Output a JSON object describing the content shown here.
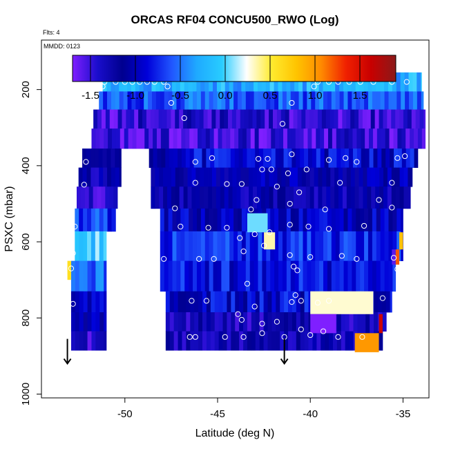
{
  "chart_data": {
    "type": "heatmap",
    "title": "ORCAS RF04 CONCU500_RWO (Log)",
    "notes": {
      "flights": "Flts: 4",
      "date": "MMDD: 0123"
    },
    "xlabel": "Latitude (deg N)",
    "ylabel": "PSXC (mbar)",
    "xlim": [
      -54.5,
      -33.6
    ],
    "ylim": [
      1010,
      70
    ],
    "y_reversed": true,
    "x_ticks": [
      -50,
      -45,
      -40,
      -35
    ],
    "x_tick_labels": [
      "-50",
      "-45",
      "-40",
      "-35"
    ],
    "y_ticks": [
      200,
      400,
      600,
      800,
      1000
    ],
    "y_tick_labels": [
      "200",
      "400",
      "600",
      "800",
      "1000"
    ],
    "colorbar": {
      "min": -1.7,
      "max": 1.9,
      "ticks": [
        -1.5,
        -1.0,
        -0.5,
        0.0,
        0.5,
        1.0,
        1.5
      ],
      "tick_labels": [
        "-1.5",
        "-1.0",
        "-0.5",
        "0.0",
        "0.5",
        "1.0",
        "1.5"
      ],
      "colors": [
        "#7f1fff",
        "#1a0dcc",
        "#00008f",
        "#0000d9",
        "#2157ff",
        "#1faaff",
        "#28ccff",
        "#ffffff",
        "#ffeb2f",
        "#ffc400",
        "#ff8a00",
        "#f02000",
        "#c80000",
        "#8b1a1a"
      ]
    },
    "rows": [
      {
        "pressure": 180,
        "segments": [
          [
            -51.2,
            -34.0,
            -0.25
          ]
        ]
      },
      {
        "pressure": 230,
        "segments": [
          [
            -51.4,
            -33.9,
            -0.6
          ]
        ]
      },
      {
        "pressure": 275,
        "segments": [
          [
            -51.7,
            -33.8,
            -1.45
          ]
        ]
      },
      {
        "pressure": 330,
        "segments": [
          [
            -51.8,
            -33.8,
            -1.5
          ]
        ]
      },
      {
        "pressure": 380,
        "segments": [
          [
            -52.3,
            -50.2,
            -1.15
          ],
          [
            -48.7,
            -34.2,
            -0.9
          ]
        ]
      },
      {
        "pressure": 430,
        "segments": [
          [
            -52.5,
            -50.2,
            -1.2
          ],
          [
            -48.6,
            -34.5,
            -1.1
          ]
        ]
      },
      {
        "pressure": 480,
        "segments": [
          [
            -52.6,
            -50.4,
            -1.4
          ],
          [
            -48.6,
            -34.6,
            -1.2
          ]
        ]
      },
      {
        "pressure": 545,
        "segments": [
          [
            -52.7,
            -50.5,
            -0.7
          ],
          [
            -48.1,
            -35.0,
            -1.0
          ]
        ]
      },
      {
        "pressure": 600,
        "segments": [
          [
            -52.7,
            -51.0,
            -0.1
          ],
          [
            -48.1,
            -35.0,
            -0.75
          ]
        ]
      },
      {
        "pressure": 700,
        "segments": [
          [
            -52.9,
            -51.0,
            -0.5
          ],
          [
            -48.1,
            -35.4,
            -0.85
          ]
        ]
      },
      {
        "pressure": 760,
        "segments": [
          [
            -52.9,
            -51.0,
            -0.9
          ],
          [
            -47.8,
            -35.6,
            -0.9
          ]
        ]
      },
      {
        "pressure": 810,
        "segments": [
          [
            -52.9,
            -51.0,
            -1.1
          ],
          [
            -47.8,
            -35.9,
            -1.3
          ]
        ]
      },
      {
        "pressure": 860,
        "segments": [
          [
            -52.9,
            -51.0,
            -1.5
          ],
          [
            -47.8,
            -36.1,
            -1.25
          ]
        ]
      }
    ],
    "highlights": [
      {
        "x0": -43.4,
        "x1": -42.3,
        "p0": 525,
        "p1": 575,
        "value": 0.05
      },
      {
        "x0": -42.5,
        "x1": -41.9,
        "p0": 575,
        "p1": 620,
        "value": 0.35
      },
      {
        "x0": -40.0,
        "x1": -36.6,
        "p0": 730,
        "p1": 790,
        "value": 0.3
      },
      {
        "x0": -40.0,
        "x1": -38.6,
        "p0": 790,
        "p1": 840,
        "value": -1.7
      },
      {
        "x0": -37.6,
        "x1": -36.3,
        "p0": 840,
        "p1": 890,
        "value": 1.0
      },
      {
        "x0": -36.3,
        "x1": -36.1,
        "p0": 790,
        "p1": 840,
        "value": 1.6
      },
      {
        "x0": -35.2,
        "x1": -35.0,
        "p0": 575,
        "p1": 620,
        "value": 0.8
      },
      {
        "x0": -35.4,
        "x1": -35.2,
        "p0": 620,
        "p1": 660,
        "value": 1.2
      },
      {
        "x0": -35.6,
        "x1": -35.4,
        "p0": 620,
        "p1": 660,
        "value": -1.6
      },
      {
        "x0": -53.1,
        "x1": -52.9,
        "p0": 650,
        "p1": 700,
        "value": 0.6
      }
    ],
    "samples": [
      [
        -51.1,
        180
      ],
      [
        -50.5,
        180
      ],
      [
        -50.0,
        180
      ],
      [
        -49.6,
        180
      ],
      [
        -49.2,
        180
      ],
      [
        -48.8,
        180
      ],
      [
        -48.4,
        180
      ],
      [
        -47.9,
        180
      ],
      [
        -47.7,
        192
      ],
      [
        -51.2,
        192
      ],
      [
        -39.8,
        192
      ],
      [
        -39.6,
        180
      ],
      [
        -39.0,
        180
      ],
      [
        -38.5,
        180
      ],
      [
        -37.9,
        180
      ],
      [
        -37.3,
        180
      ],
      [
        -36.6,
        180
      ],
      [
        -35.6,
        180
      ],
      [
        -34.8,
        180
      ],
      [
        -47.5,
        235
      ],
      [
        -46.8,
        275
      ],
      [
        -41.0,
        235
      ],
      [
        -41.5,
        290
      ],
      [
        -45.3,
        380
      ],
      [
        -46.2,
        390
      ],
      [
        -41.0,
        370
      ],
      [
        -39.0,
        385
      ],
      [
        -38.1,
        380
      ],
      [
        -37.5,
        390
      ],
      [
        -35.3,
        380
      ],
      [
        -34.9,
        375
      ],
      [
        -52.1,
        390
      ],
      [
        -42.6,
        410
      ],
      [
        -42.1,
        410
      ],
      [
        -42.3,
        382
      ],
      [
        -42.8,
        382
      ],
      [
        -40.2,
        410
      ],
      [
        -41.2,
        420
      ],
      [
        -46.2,
        445
      ],
      [
        -44.5,
        448
      ],
      [
        -43.7,
        448
      ],
      [
        -41.8,
        455
      ],
      [
        -40.6,
        470
      ],
      [
        -38.4,
        445
      ],
      [
        -35.6,
        445
      ],
      [
        -52.2,
        450
      ],
      [
        -47.3,
        512
      ],
      [
        -43.2,
        515
      ],
      [
        -42.9,
        490
      ],
      [
        -41.1,
        500
      ],
      [
        -39.2,
        515
      ],
      [
        -36.3,
        490
      ],
      [
        -35.6,
        510
      ],
      [
        -52.7,
        560
      ],
      [
        -47.0,
        560
      ],
      [
        -45.5,
        563
      ],
      [
        -44.5,
        563
      ],
      [
        -42.2,
        575
      ],
      [
        -41.1,
        555
      ],
      [
        -40.1,
        560
      ],
      [
        -39.0,
        566
      ],
      [
        -37.1,
        558
      ],
      [
        -43.0,
        580
      ],
      [
        -43.8,
        590
      ],
      [
        -42.5,
        610
      ],
      [
        -41.1,
        635
      ],
      [
        -40.0,
        640
      ],
      [
        -52.8,
        630
      ],
      [
        -47.9,
        645
      ],
      [
        -46.0,
        645
      ],
      [
        -45.2,
        645
      ],
      [
        -43.6,
        625
      ],
      [
        -40.9,
        665
      ],
      [
        -40.7,
        675
      ],
      [
        -38.3,
        637
      ],
      [
        -37.5,
        645
      ],
      [
        -35.5,
        642
      ],
      [
        -35.3,
        672
      ],
      [
        -52.9,
        670
      ],
      [
        -43.4,
        710
      ],
      [
        -40.8,
        740
      ],
      [
        -46.4,
        755
      ],
      [
        -45.6,
        755
      ],
      [
        -43.0,
        770
      ],
      [
        -41.0,
        758
      ],
      [
        -40.5,
        755
      ],
      [
        -39.6,
        760
      ],
      [
        -39.0,
        755
      ],
      [
        -36.1,
        748
      ],
      [
        -52.8,
        763
      ],
      [
        -43.9,
        790
      ],
      [
        -43.7,
        805
      ],
      [
        -42.6,
        815
      ],
      [
        -40.5,
        830
      ],
      [
        -38.5,
        850
      ],
      [
        -37.2,
        850
      ],
      [
        -46.5,
        850
      ],
      [
        -46.2,
        850
      ],
      [
        -44.6,
        850
      ],
      [
        -43.6,
        850
      ],
      [
        -42.6,
        840
      ],
      [
        -41.4,
        850
      ],
      [
        -40.0,
        845
      ],
      [
        -39.3,
        835
      ],
      [
        -53.1,
        830
      ],
      [
        -41.8,
        810
      ]
    ],
    "arrows": [
      {
        "x": -53.1,
        "p0": 855,
        "p1": 920
      },
      {
        "x": -41.4,
        "p0": 855,
        "p1": 920
      }
    ]
  }
}
